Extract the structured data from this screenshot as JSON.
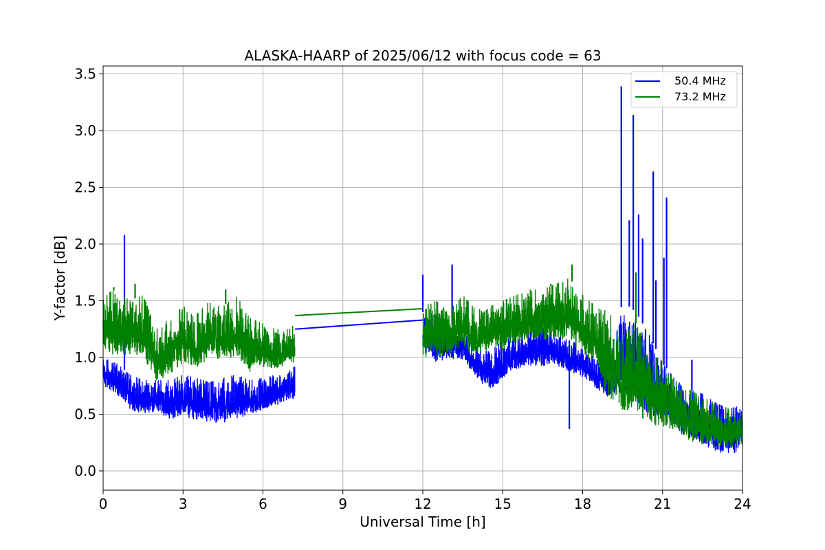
{
  "chart_data": {
    "type": "line",
    "title": "ALASKA-HAARP of 2025/06/12 with focus code = 63",
    "xlabel": "Universal Time [h]",
    "ylabel": "Y-factor [dB]",
    "xlim": [
      0,
      24
    ],
    "ylim": [
      -0.17,
      3.57
    ],
    "xticks": [
      0,
      3,
      6,
      9,
      12,
      15,
      18,
      21,
      24
    ],
    "xtick_labels": [
      "0",
      "3",
      "6",
      "9",
      "12",
      "15",
      "18",
      "21",
      "24"
    ],
    "yticks": [
      0.0,
      0.5,
      1.0,
      1.5,
      2.0,
      2.5,
      3.0,
      3.5
    ],
    "ytick_labels": [
      "0.0",
      "0.5",
      "1.0",
      "1.5",
      "2.0",
      "2.5",
      "3.0",
      "3.5"
    ],
    "grid": true,
    "legend_position": "top-right",
    "gap": [
      7.2,
      12.0
    ],
    "series": [
      {
        "name": "50.4 MHz",
        "color": "#0000ff",
        "x": [
          0,
          0.5,
          1,
          1.5,
          2,
          2.5,
          3,
          3.5,
          4,
          4.5,
          5,
          5.5,
          6,
          6.5,
          7,
          7.2,
          12,
          12.5,
          13,
          13.5,
          14,
          14.5,
          15,
          15.5,
          16,
          16.5,
          17,
          17.5,
          18,
          18.5,
          19,
          19.5,
          20,
          20.5,
          21,
          21.5,
          22,
          22.5,
          23,
          23.5,
          24
        ],
        "low": [
          0.65,
          0.6,
          0.45,
          0.42,
          0.45,
          0.35,
          0.4,
          0.32,
          0.3,
          0.32,
          0.35,
          0.4,
          0.45,
          0.5,
          0.55,
          0.55,
          0.95,
          0.85,
          0.9,
          0.9,
          0.75,
          0.62,
          0.68,
          0.82,
          0.78,
          0.82,
          0.85,
          0.8,
          0.75,
          0.65,
          0.55,
          0.45,
          0.35,
          0.3,
          0.3,
          0.25,
          0.15,
          0.1,
          0.05,
          0.02,
          0.08
        ],
        "high": [
          1.0,
          0.95,
          0.85,
          0.8,
          0.8,
          0.8,
          0.85,
          0.82,
          0.78,
          0.82,
          0.85,
          0.8,
          0.82,
          0.85,
          0.9,
          0.92,
          1.4,
          1.35,
          1.3,
          1.25,
          1.1,
          1.05,
          1.15,
          1.2,
          1.25,
          1.3,
          1.2,
          1.15,
          1.1,
          1.0,
          0.95,
          1.5,
          1.4,
          1.2,
          0.95,
          0.8,
          0.72,
          0.68,
          0.6,
          0.55,
          0.58
        ],
        "spikes": [
          [
            0.8,
            2.08
          ],
          [
            12.0,
            1.73
          ],
          [
            13.1,
            1.82
          ],
          [
            17.5,
            0.37
          ],
          [
            19.45,
            3.39
          ],
          [
            19.75,
            2.21
          ],
          [
            19.9,
            3.14
          ],
          [
            20.1,
            2.26
          ],
          [
            20.25,
            2.05
          ],
          [
            20.65,
            2.64
          ],
          [
            20.75,
            1.68
          ],
          [
            21.05,
            1.88
          ],
          [
            21.15,
            2.41
          ],
          [
            22.1,
            0.98
          ]
        ],
        "connector": [
          [
            7.2,
            1.25
          ],
          [
            12.0,
            1.33
          ]
        ]
      },
      {
        "name": "73.2 MHz",
        "color": "#008000",
        "x": [
          0,
          0.5,
          1,
          1.5,
          2,
          2.5,
          3,
          3.5,
          4,
          4.5,
          5,
          5.5,
          6,
          6.5,
          7,
          7.2,
          12,
          12.5,
          13,
          13.5,
          14,
          14.5,
          15,
          15.5,
          16,
          16.5,
          17,
          17.5,
          18,
          18.5,
          19,
          19.5,
          20,
          20.5,
          21,
          21.5,
          22,
          22.5,
          23,
          23.5,
          24
        ],
        "low": [
          0.95,
          0.85,
          0.9,
          0.85,
          0.65,
          0.7,
          0.8,
          0.75,
          0.85,
          0.85,
          0.82,
          0.75,
          0.8,
          0.8,
          0.85,
          0.85,
          0.9,
          0.85,
          0.9,
          0.95,
          0.92,
          0.95,
          0.95,
          1.0,
          1.0,
          1.05,
          1.0,
          1.0,
          0.9,
          0.8,
          0.4,
          0.35,
          0.3,
          0.25,
          0.25,
          0.22,
          0.15,
          0.12,
          0.1,
          0.08,
          0.15
        ],
        "high": [
          1.55,
          1.6,
          1.5,
          1.55,
          1.25,
          1.35,
          1.45,
          1.38,
          1.5,
          1.45,
          1.55,
          1.35,
          1.3,
          1.25,
          1.25,
          1.3,
          1.45,
          1.5,
          1.42,
          1.55,
          1.42,
          1.45,
          1.5,
          1.55,
          1.6,
          1.6,
          1.65,
          1.7,
          1.55,
          1.45,
          1.4,
          1.2,
          1.3,
          1.05,
          0.95,
          0.8,
          0.72,
          0.65,
          0.6,
          0.55,
          0.55
        ],
        "spikes": [
          [
            0.4,
            1.62
          ],
          [
            1.2,
            1.65
          ],
          [
            4.6,
            1.6
          ],
          [
            16.8,
            1.65
          ],
          [
            17.6,
            1.82
          ],
          [
            20.0,
            1.75
          ]
        ],
        "connector": [
          [
            7.2,
            1.37
          ],
          [
            12.0,
            1.43
          ]
        ]
      }
    ]
  }
}
